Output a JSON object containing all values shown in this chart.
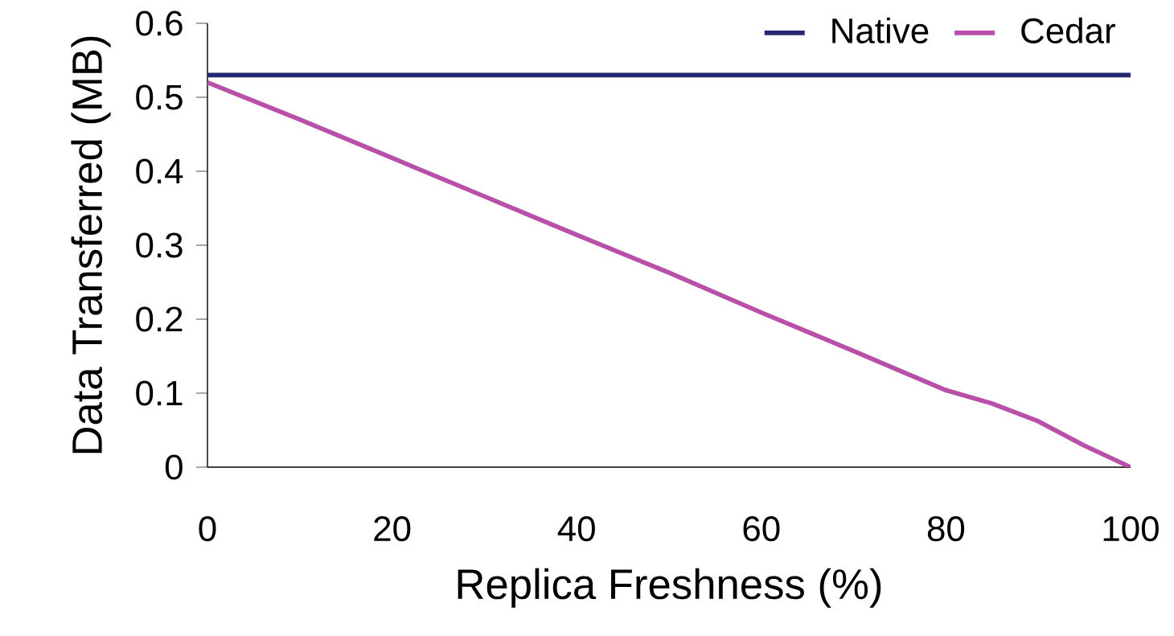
{
  "chart_data": {
    "type": "line",
    "xlabel": "Replica Freshness (%)",
    "ylabel": "Data Transferred (MB)",
    "x": [
      0,
      10,
      20,
      30,
      40,
      50,
      60,
      70,
      80,
      85,
      90,
      95,
      100
    ],
    "series": [
      {
        "name": "Native",
        "color": "#262673",
        "values": [
          0.53,
          0.53,
          0.53,
          0.53,
          0.53,
          0.53,
          0.53,
          0.53,
          0.53,
          0.53,
          0.53,
          0.53,
          0.53
        ]
      },
      {
        "name": "Cedar",
        "color": "#b84fa8",
        "values": [
          0.52,
          0.47,
          0.418,
          0.366,
          0.314,
          0.263,
          0.209,
          0.157,
          0.104,
          0.086,
          0.062,
          0.029,
          0.0
        ]
      }
    ],
    "xlim": [
      0,
      100
    ],
    "ylim": [
      0,
      0.6
    ],
    "xticks": [
      0,
      20,
      40,
      60,
      80,
      100
    ],
    "yticks": [
      0,
      0.1,
      0.2,
      0.3,
      0.4,
      0.5,
      0.6
    ],
    "grid": false,
    "legend": "top right",
    "marker": "none",
    "line_style": "solid"
  }
}
